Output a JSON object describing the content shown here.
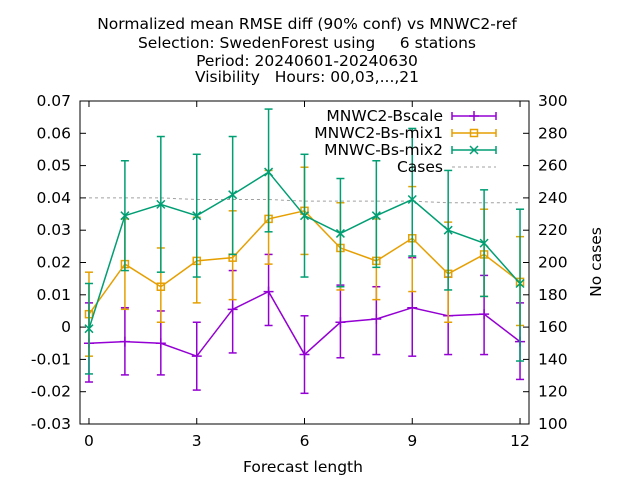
{
  "chart_data": {
    "type": "line",
    "title_lines": [
      "Normalized mean RMSE diff (90% conf) vs MNWC2-ref",
      "Selection: SwedenForest using     6 stations",
      "Period: 20240601-20240630",
      "Visibility   Hours: 00,03,...,21"
    ],
    "xlabel": "Forecast length",
    "ylabel_right": "No cases",
    "xlim": [
      -0.25,
      12.25
    ],
    "ylim": [
      -0.03,
      0.07
    ],
    "y2lim": [
      100,
      300
    ],
    "x_ticks": [
      0,
      3,
      6,
      9,
      12
    ],
    "x_tick_labels": [
      "0",
      "3",
      "6",
      "9",
      "12"
    ],
    "y_ticks": [
      -0.03,
      -0.02,
      -0.01,
      0,
      0.01,
      0.02,
      0.03,
      0.04,
      0.05,
      0.06,
      0.07
    ],
    "y_tick_labels": [
      "-0.03",
      "-0.02",
      "-0.01",
      "0",
      "0.01",
      "0.02",
      "0.03",
      "0.04",
      "0.05",
      "0.06",
      "0.07"
    ],
    "y2_ticks": [
      100,
      120,
      140,
      160,
      180,
      200,
      220,
      240,
      260,
      280,
      300
    ],
    "y2_tick_labels": [
      "100",
      "120",
      "140",
      "160",
      "180",
      "200",
      "220",
      "240",
      "260",
      "280",
      "300"
    ],
    "grid": false,
    "legend_position": "top-right",
    "x": [
      0,
      1,
      2,
      3,
      4,
      5,
      6,
      7,
      8,
      9,
      10,
      11,
      12
    ],
    "series": [
      {
        "name": "MNWC2-Bscale",
        "color": "#9400d3",
        "marker": "plus",
        "values": [
          -0.005,
          -0.0045,
          -0.005,
          -0.009,
          0.0055,
          0.011,
          -0.0085,
          0.0015,
          0.0025,
          0.006,
          0.0035,
          0.004,
          -0.0045
        ],
        "err_low": [
          -0.017,
          -0.0148,
          -0.0148,
          -0.0195,
          -0.008,
          0.0005,
          -0.0205,
          -0.0095,
          -0.0085,
          -0.009,
          -0.0085,
          -0.0085,
          -0.0162
        ],
        "err_high": [
          0.0075,
          0.006,
          0.005,
          0.0015,
          0.0175,
          0.0225,
          0.0035,
          0.013,
          0.0125,
          0.0215,
          0.0155,
          0.016,
          0.0075
        ]
      },
      {
        "name": "MNWC2-Bs-mix1",
        "color": "#e69f00",
        "marker": "open-square",
        "values": [
          0.004,
          0.0195,
          0.0125,
          0.0205,
          0.0215,
          0.0335,
          0.036,
          0.0245,
          0.0205,
          0.0275,
          0.0165,
          0.0225,
          0.014
        ],
        "err_low": [
          -0.009,
          0.0055,
          0.0015,
          0.0075,
          0.0085,
          0.0195,
          0.0225,
          0.0115,
          0.0085,
          0.011,
          0.0015,
          0.0095,
          0.0005
        ],
        "err_high": [
          0.017,
          0.0335,
          0.0245,
          0.034,
          0.036,
          0.0485,
          0.0495,
          0.0385,
          0.0335,
          0.0435,
          0.0325,
          0.0365,
          0.028
        ]
      },
      {
        "name": "MNWC-Bs-mix2",
        "color": "#009e73",
        "marker": "cross",
        "values": [
          -0.0005,
          0.0345,
          0.038,
          0.0345,
          0.041,
          0.048,
          0.0345,
          0.029,
          0.0345,
          0.0395,
          0.03,
          0.026,
          0.0135
        ],
        "err_low": [
          -0.0145,
          0.0175,
          0.017,
          0.0155,
          0.0225,
          0.0295,
          0.0155,
          0.0125,
          0.0185,
          0.022,
          0.0115,
          0.0095,
          -0.0105
        ],
        "err_high": [
          0.0135,
          0.0515,
          0.059,
          0.0535,
          0.059,
          0.0675,
          0.0535,
          0.046,
          0.0515,
          0.0615,
          0.0485,
          0.0425,
          0.0365
        ]
      }
    ],
    "cases": {
      "name": "Cases",
      "color": "#a0a0a0",
      "axis": "right",
      "values": [
        240,
        240,
        240,
        239,
        239,
        239,
        238,
        238,
        238,
        238,
        237,
        237,
        237
      ]
    }
  }
}
